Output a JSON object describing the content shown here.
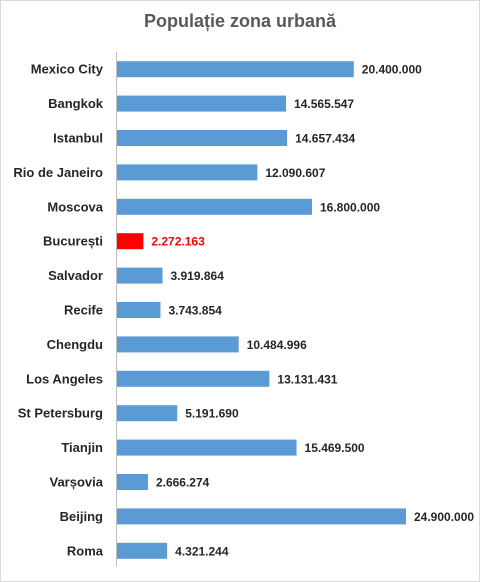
{
  "chart_data": {
    "type": "bar",
    "orientation": "horizontal",
    "title": "Populație zona urbană",
    "categories": [
      "Mexico City",
      "Bangkok",
      "Istanbul",
      "Rio de Janeiro",
      "Moscova",
      "București",
      "Salvador",
      "Recife",
      "Chengdu",
      "Los Angeles",
      "St Petersburg",
      "Tianjin",
      "Varșovia",
      "Beijing",
      "Roma"
    ],
    "values": [
      20400000,
      14565547,
      14657434,
      12090607,
      16800000,
      2272163,
      3919864,
      3743854,
      10484996,
      13131431,
      5191690,
      15469500,
      2666274,
      24900000,
      4321244
    ],
    "value_labels": [
      "20.400.000",
      "14.565.547",
      "14.657.434",
      "12.090.607",
      "16.800.000",
      "2.272.163",
      "3.919.864",
      "3.743.854",
      "10.484.996",
      "13.131.431",
      "5.191.690",
      "15.469.500",
      "2.666.274",
      "24.900.000",
      "4.321.244"
    ],
    "highlight_index": 5,
    "colors": {
      "bar": "#5b9bd5",
      "highlight": "#ff0000",
      "highlight_label": "#ff0000"
    },
    "xlim": [
      0,
      24900000
    ],
    "gridlines": false,
    "legend": "none"
  }
}
